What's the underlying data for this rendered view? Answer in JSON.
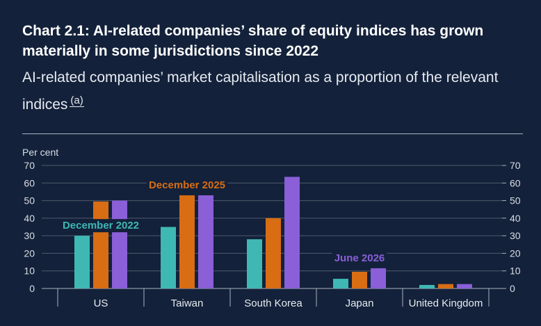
{
  "header": {
    "title": "Chart 2.1: AI-related companies’ share of equity indices has grown materially in some jurisdictions since 2022",
    "subtitle": "AI-related companies’ market capitalisation as a proportion of the relevant indices",
    "footnote_marker": "(a)"
  },
  "colors": {
    "background": "#13213a",
    "gridline": "#4f5b6c",
    "dec2022": "#3fb8b4",
    "dec2025": "#d86d14",
    "jun2026": "#8a5fd8"
  },
  "chart_data": {
    "type": "bar",
    "title": "Chart 2.1: AI-related companies’ share of equity indices has grown materially in some jurisdictions since 2022",
    "ylabel": "Per cent",
    "ylim": [
      0,
      70
    ],
    "yticks": [
      0,
      10,
      20,
      30,
      40,
      50,
      60,
      70
    ],
    "dual_y_axis": true,
    "grid": true,
    "categories": [
      "US",
      "Taiwan",
      "South Korea",
      "Japan",
      "United Kingdom"
    ],
    "series": [
      {
        "name": "December 2022",
        "color": "#3fb8b4",
        "values": [
          30,
          35,
          28,
          5.5,
          2
        ]
      },
      {
        "name": "December 2025",
        "color": "#d86d14",
        "values": [
          49.5,
          53,
          40,
          9.5,
          2.5
        ]
      },
      {
        "name": "June 2026",
        "color": "#8a5fd8",
        "values": [
          50,
          53,
          63.5,
          11.5,
          2.5
        ]
      }
    ],
    "annotations": [
      {
        "text": "December 2022",
        "series": 0,
        "near_category": "US"
      },
      {
        "text": "December 2025",
        "series": 1,
        "near_category": "Taiwan"
      },
      {
        "text": "June 2026",
        "series": 2,
        "near_category": "Japan"
      }
    ]
  }
}
